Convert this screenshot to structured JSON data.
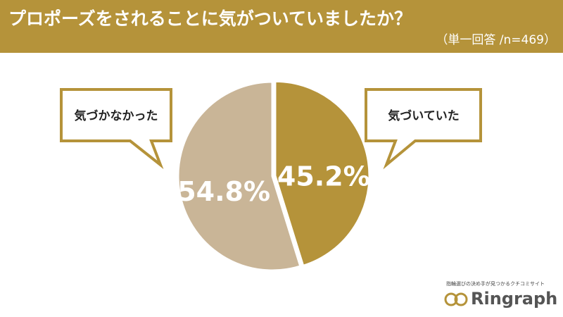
{
  "chart_data": {
    "type": "pie",
    "title": "プロポーズをされることに気がついていましたか？",
    "subtitle": "（単一回答 /n=469）",
    "categories": [
      "気づいていた",
      "気づかなかった"
    ],
    "values": [
      45.2,
      54.8
    ],
    "value_labels": [
      "45.2%",
      "54.8%"
    ],
    "colors": [
      "#b5933a",
      "#c9b597"
    ]
  },
  "brand": {
    "tagline": "指輪選びの決め手が見つかるクチコミサイト",
    "name": "Ringraph"
  }
}
